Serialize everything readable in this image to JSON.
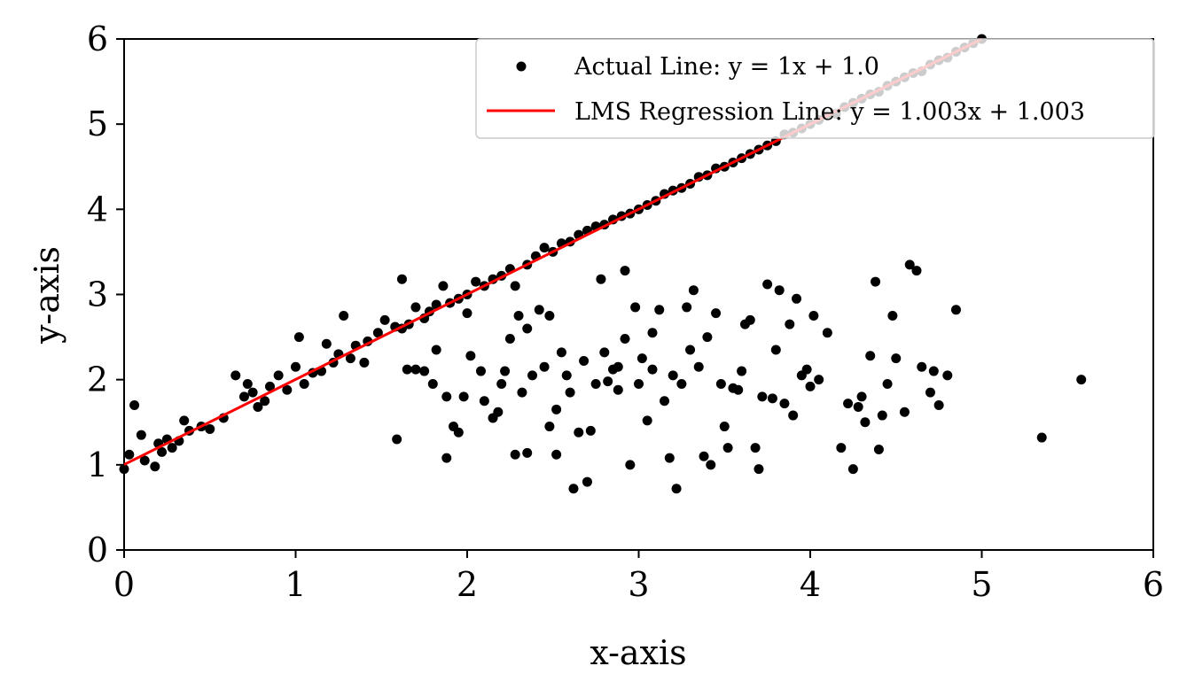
{
  "chart_data": {
    "type": "scatter",
    "xlabel": "x-axis",
    "ylabel": "y-axis",
    "xlim": [
      0,
      6
    ],
    "ylim": [
      0,
      6
    ],
    "xticks": [
      "0",
      "1",
      "2",
      "3",
      "4",
      "5",
      "6"
    ],
    "yticks": [
      "0",
      "1",
      "2",
      "3",
      "4",
      "5",
      "6"
    ],
    "grid": false,
    "legend_position": "top-right",
    "legend": [
      {
        "label": "Actual Line: y = 1x + 1.0",
        "marker": "point",
        "color": "#000000"
      },
      {
        "label": "LMS Regression Line: y = 1.003x + 1.003",
        "marker": "line",
        "color": "#ff0000"
      }
    ],
    "regression_line": {
      "slope": 1.003,
      "intercept": 1.003,
      "x_range": [
        0,
        5
      ],
      "color": "#ff0000"
    },
    "scatter_on_line": [
      [
        0.0,
        0.95
      ],
      [
        0.03,
        1.12
      ],
      [
        0.06,
        1.7
      ],
      [
        0.1,
        1.35
      ],
      [
        0.12,
        1.05
      ],
      [
        0.18,
        0.98
      ],
      [
        0.2,
        1.25
      ],
      [
        0.22,
        1.15
      ],
      [
        0.25,
        1.3
      ],
      [
        0.28,
        1.2
      ],
      [
        0.32,
        1.28
      ],
      [
        0.35,
        1.52
      ],
      [
        0.38,
        1.4
      ],
      [
        0.45,
        1.45
      ],
      [
        0.5,
        1.42
      ],
      [
        0.58,
        1.55
      ],
      [
        0.65,
        2.05
      ],
      [
        0.7,
        1.8
      ],
      [
        0.72,
        1.95
      ],
      [
        0.75,
        1.85
      ],
      [
        0.78,
        1.68
      ],
      [
        0.82,
        1.75
      ],
      [
        0.85,
        1.92
      ],
      [
        0.9,
        2.05
      ],
      [
        0.95,
        1.88
      ],
      [
        1.0,
        2.15
      ],
      [
        1.02,
        2.5
      ],
      [
        1.05,
        1.95
      ],
      [
        1.1,
        2.08
      ],
      [
        1.15,
        2.1
      ],
      [
        1.18,
        2.42
      ],
      [
        1.22,
        2.2
      ],
      [
        1.25,
        2.3
      ],
      [
        1.28,
        2.75
      ],
      [
        1.32,
        2.25
      ],
      [
        1.35,
        2.4
      ],
      [
        1.4,
        2.2
      ],
      [
        1.42,
        2.45
      ],
      [
        1.48,
        2.55
      ],
      [
        1.52,
        2.7
      ],
      [
        1.58,
        2.62
      ],
      [
        1.62,
        2.6
      ],
      [
        1.66,
        2.65
      ],
      [
        1.7,
        2.85
      ],
      [
        1.75,
        2.72
      ],
      [
        1.78,
        2.8
      ],
      [
        1.82,
        2.88
      ],
      [
        1.86,
        3.1
      ],
      [
        1.9,
        2.9
      ],
      [
        1.95,
        2.95
      ],
      [
        2.0,
        3.0
      ],
      [
        2.05,
        3.15
      ],
      [
        2.1,
        3.1
      ],
      [
        2.15,
        3.18
      ],
      [
        2.2,
        3.22
      ],
      [
        2.25,
        3.3
      ],
      [
        2.28,
        3.1
      ],
      [
        2.35,
        3.35
      ],
      [
        2.4,
        3.45
      ],
      [
        2.45,
        3.55
      ],
      [
        2.5,
        3.5
      ],
      [
        2.55,
        3.6
      ],
      [
        2.6,
        3.62
      ],
      [
        2.65,
        3.7
      ],
      [
        2.7,
        3.75
      ],
      [
        2.75,
        3.8
      ],
      [
        2.8,
        3.82
      ],
      [
        2.85,
        3.88
      ],
      [
        2.9,
        3.92
      ],
      [
        2.95,
        3.95
      ],
      [
        3.0,
        4.0
      ],
      [
        3.05,
        4.05
      ],
      [
        3.1,
        4.1
      ],
      [
        3.15,
        4.18
      ],
      [
        3.2,
        4.22
      ],
      [
        3.25,
        4.25
      ],
      [
        3.3,
        4.3
      ],
      [
        3.35,
        4.38
      ],
      [
        3.4,
        4.4
      ],
      [
        3.45,
        4.48
      ],
      [
        3.5,
        4.5
      ],
      [
        3.55,
        4.55
      ],
      [
        3.6,
        4.6
      ],
      [
        3.65,
        4.65
      ],
      [
        3.7,
        4.7
      ],
      [
        3.75,
        4.75
      ],
      [
        3.8,
        4.8
      ],
      [
        3.85,
        4.88
      ],
      [
        3.9,
        4.9
      ],
      [
        3.95,
        4.95
      ],
      [
        4.0,
        5.0
      ],
      [
        4.05,
        5.05
      ],
      [
        4.1,
        5.1
      ],
      [
        4.15,
        5.12
      ],
      [
        4.2,
        5.2
      ],
      [
        4.25,
        5.25
      ],
      [
        4.3,
        5.3
      ],
      [
        4.35,
        5.35
      ],
      [
        4.4,
        5.38
      ],
      [
        4.45,
        5.45
      ],
      [
        4.5,
        5.5
      ],
      [
        4.55,
        5.55
      ],
      [
        4.6,
        5.6
      ],
      [
        4.65,
        5.62
      ],
      [
        4.7,
        5.7
      ],
      [
        4.75,
        5.75
      ],
      [
        4.8,
        5.78
      ],
      [
        4.85,
        5.85
      ],
      [
        4.9,
        5.9
      ],
      [
        4.95,
        5.95
      ],
      [
        5.0,
        6.0
      ]
    ],
    "scatter_cloud": [
      [
        1.59,
        1.3
      ],
      [
        1.62,
        3.18
      ],
      [
        1.65,
        2.12
      ],
      [
        1.7,
        2.12
      ],
      [
        1.75,
        2.1
      ],
      [
        1.8,
        1.95
      ],
      [
        1.82,
        2.35
      ],
      [
        1.88,
        1.8
      ],
      [
        1.88,
        1.08
      ],
      [
        1.92,
        1.45
      ],
      [
        1.95,
        1.38
      ],
      [
        1.98,
        1.8
      ],
      [
        2.0,
        2.78
      ],
      [
        2.02,
        2.28
      ],
      [
        2.08,
        2.1
      ],
      [
        2.1,
        1.75
      ],
      [
        2.15,
        1.55
      ],
      [
        2.18,
        1.62
      ],
      [
        2.2,
        1.95
      ],
      [
        2.22,
        2.1
      ],
      [
        2.25,
        2.48
      ],
      [
        2.28,
        1.12
      ],
      [
        2.3,
        2.75
      ],
      [
        2.32,
        1.85
      ],
      [
        2.35,
        1.14
      ],
      [
        2.35,
        2.6
      ],
      [
        2.38,
        2.05
      ],
      [
        2.42,
        2.82
      ],
      [
        2.45,
        2.15
      ],
      [
        2.48,
        2.75
      ],
      [
        2.48,
        1.45
      ],
      [
        2.52,
        1.65
      ],
      [
        2.52,
        1.12
      ],
      [
        2.55,
        2.32
      ],
      [
        2.58,
        2.05
      ],
      [
        2.6,
        1.85
      ],
      [
        2.62,
        0.72
      ],
      [
        2.65,
        1.38
      ],
      [
        2.68,
        2.22
      ],
      [
        2.7,
        0.8
      ],
      [
        2.72,
        1.4
      ],
      [
        2.75,
        1.95
      ],
      [
        2.78,
        3.18
      ],
      [
        2.8,
        2.32
      ],
      [
        2.82,
        1.98
      ],
      [
        2.85,
        2.12
      ],
      [
        2.88,
        2.15
      ],
      [
        2.88,
        1.88
      ],
      [
        2.92,
        2.48
      ],
      [
        2.92,
        3.28
      ],
      [
        2.95,
        1.0
      ],
      [
        2.98,
        2.85
      ],
      [
        3.0,
        1.95
      ],
      [
        3.02,
        2.25
      ],
      [
        3.05,
        1.52
      ],
      [
        3.08,
        2.12
      ],
      [
        3.08,
        2.55
      ],
      [
        3.12,
        2.82
      ],
      [
        3.15,
        1.75
      ],
      [
        3.18,
        1.08
      ],
      [
        3.2,
        2.05
      ],
      [
        3.22,
        0.72
      ],
      [
        3.25,
        1.95
      ],
      [
        3.28,
        2.85
      ],
      [
        3.3,
        2.35
      ],
      [
        3.32,
        3.05
      ],
      [
        3.35,
        2.15
      ],
      [
        3.38,
        1.1
      ],
      [
        3.4,
        2.5
      ],
      [
        3.42,
        1.0
      ],
      [
        3.45,
        2.78
      ],
      [
        3.48,
        1.95
      ],
      [
        3.5,
        1.45
      ],
      [
        3.52,
        1.2
      ],
      [
        3.55,
        1.9
      ],
      [
        3.58,
        1.88
      ],
      [
        3.6,
        2.1
      ],
      [
        3.62,
        2.65
      ],
      [
        3.65,
        2.7
      ],
      [
        3.68,
        1.2
      ],
      [
        3.7,
        0.95
      ],
      [
        3.72,
        1.8
      ],
      [
        3.75,
        3.12
      ],
      [
        3.78,
        1.78
      ],
      [
        3.8,
        2.35
      ],
      [
        3.82,
        3.05
      ],
      [
        3.85,
        1.72
      ],
      [
        3.88,
        2.65
      ],
      [
        3.9,
        1.58
      ],
      [
        3.92,
        2.95
      ],
      [
        3.95,
        2.05
      ],
      [
        3.98,
        2.12
      ],
      [
        4.0,
        1.92
      ],
      [
        4.02,
        2.75
      ],
      [
        4.05,
        2.0
      ],
      [
        4.1,
        2.55
      ],
      [
        4.18,
        1.2
      ],
      [
        4.22,
        1.72
      ],
      [
        4.25,
        0.95
      ],
      [
        4.28,
        1.68
      ],
      [
        4.3,
        1.8
      ],
      [
        4.32,
        1.5
      ],
      [
        4.35,
        2.28
      ],
      [
        4.38,
        3.15
      ],
      [
        4.4,
        1.18
      ],
      [
        4.42,
        1.58
      ],
      [
        4.45,
        1.95
      ],
      [
        4.48,
        2.75
      ],
      [
        4.5,
        2.25
      ],
      [
        4.55,
        1.62
      ],
      [
        4.58,
        3.35
      ],
      [
        4.62,
        3.28
      ],
      [
        4.65,
        2.15
      ],
      [
        4.7,
        1.85
      ],
      [
        4.72,
        2.1
      ],
      [
        4.75,
        1.7
      ],
      [
        4.8,
        2.05
      ],
      [
        4.85,
        2.82
      ],
      [
        5.35,
        1.32
      ],
      [
        5.58,
        2.0
      ]
    ]
  }
}
